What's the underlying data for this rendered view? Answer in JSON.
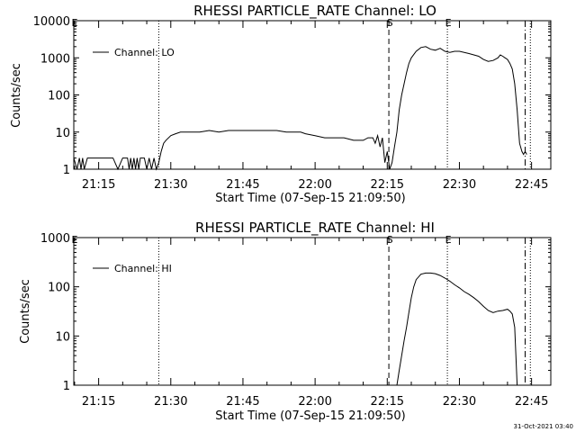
{
  "stamp": "31-Oct-2021 03:40",
  "chart_data": [
    {
      "type": "line",
      "title": "RHESSI PARTICLE_RATE Channel: LO",
      "ylabel": "Counts/sec",
      "xlabel": "Start Time (07-Sep-15 21:09:50)",
      "y_scale": "log",
      "ylim": [
        1,
        10000
      ],
      "xlim": [
        "21:09:50",
        "22:49:00"
      ],
      "x_ticks": [
        "21:15",
        "21:30",
        "21:45",
        "22:00",
        "22:15",
        "22:30",
        "22:45"
      ],
      "y_ticks": [
        "1",
        "10",
        "100",
        "1000",
        "10000"
      ],
      "legend": "Channel: LO",
      "legend_position": "top-left",
      "markers": [
        {
          "label": "E",
          "time": "21:09:50",
          "style": "solid"
        },
        {
          "label": "",
          "time": "21:27:30",
          "style": "dotted"
        },
        {
          "label": "S",
          "time": "22:15:20",
          "style": "dashed"
        },
        {
          "label": "E",
          "time": "22:27:30",
          "style": "dotted"
        },
        {
          "label": "",
          "time": "22:43:40",
          "style": "dashdot"
        },
        {
          "label": "",
          "time": "22:44:45",
          "style": "dotted"
        }
      ],
      "series": [
        {
          "name": "Channel: LO",
          "x": [
            "21:09:50",
            "21:10:30",
            "21:11:00",
            "21:11:20",
            "21:11:40",
            "21:12:00",
            "21:12:40",
            "21:13:20",
            "21:14:00",
            "21:15:00",
            "21:16:00",
            "21:17:00",
            "21:18:00",
            "21:19:00",
            "21:20:00",
            "21:21:00",
            "21:21:20",
            "21:21:40",
            "21:22:00",
            "21:22:20",
            "21:22:40",
            "21:23:00",
            "21:23:20",
            "21:23:40",
            "21:24:00",
            "21:24:30",
            "21:25:00",
            "21:25:30",
            "21:26:00",
            "21:26:30",
            "21:27:00",
            "21:27:30",
            "21:28:00",
            "21:28:30",
            "21:29:00",
            "21:30:00",
            "21:31:00",
            "21:32:00",
            "21:34:00",
            "21:36:00",
            "21:38:00",
            "21:40:00",
            "21:42:00",
            "21:44:00",
            "21:46:00",
            "21:48:00",
            "21:50:00",
            "21:52:00",
            "21:54:00",
            "21:56:00",
            "21:57:00",
            "21:58:00",
            "22:00:00",
            "22:02:00",
            "22:04:00",
            "22:06:00",
            "22:08:00",
            "22:10:00",
            "22:11:00",
            "22:12:00",
            "22:12:30",
            "22:13:00",
            "22:13:30",
            "22:14:00",
            "22:14:30",
            "22:15:00",
            "22:15:30",
            "22:16:00",
            "22:16:30",
            "22:17:00",
            "22:17:30",
            "22:18:00",
            "22:18:30",
            "22:19:00",
            "22:19:30",
            "22:20:00",
            "22:21:00",
            "22:22:00",
            "22:23:00",
            "22:24:00",
            "22:25:00",
            "22:26:00",
            "22:27:00",
            "22:28:00",
            "22:29:00",
            "22:30:00",
            "22:31:00",
            "22:32:00",
            "22:33:00",
            "22:34:00",
            "22:35:00",
            "22:36:00",
            "22:37:00",
            "22:38:00",
            "22:38:30",
            "22:39:00",
            "22:39:30",
            "22:40:00",
            "22:40:30",
            "22:41:00",
            "22:41:30",
            "22:42:00",
            "22:42:30",
            "22:43:00",
            "22:43:20",
            "22:43:40",
            "22:44:00"
          ],
          "values": [
            2,
            1,
            2,
            1,
            2,
            1,
            2,
            2,
            2,
            2,
            2,
            2,
            2,
            1,
            2,
            2,
            1,
            2,
            1,
            2,
            1,
            2,
            1,
            2,
            2,
            2,
            1,
            2,
            1,
            2,
            1,
            1.5,
            3,
            5,
            6,
            8,
            9,
            10,
            10,
            10,
            11,
            10,
            11,
            11,
            11,
            11,
            11,
            11,
            10,
            10,
            10,
            9,
            8,
            7,
            7,
            7,
            6,
            6,
            7,
            7,
            5,
            8,
            4,
            7,
            1.5,
            3,
            1,
            1.5,
            4,
            10,
            40,
            100,
            200,
            400,
            700,
            1000,
            1500,
            1900,
            2000,
            1700,
            1600,
            1800,
            1500,
            1400,
            1500,
            1500,
            1400,
            1300,
            1200,
            1100,
            900,
            800,
            850,
            1000,
            1200,
            1100,
            1000,
            900,
            700,
            500,
            200,
            40,
            5,
            3,
            2.5,
            3,
            2.5
          ]
        }
      ]
    },
    {
      "type": "line",
      "title": "RHESSI PARTICLE_RATE Channel: HI",
      "ylabel": "Counts/sec",
      "xlabel": "Start Time (07-Sep-15 21:09:50)",
      "y_scale": "log",
      "ylim": [
        1,
        1000
      ],
      "xlim": [
        "21:09:50",
        "22:49:00"
      ],
      "x_ticks": [
        "21:15",
        "21:30",
        "21:45",
        "22:00",
        "22:15",
        "22:30",
        "22:45"
      ],
      "y_ticks": [
        "1",
        "10",
        "100",
        "1000"
      ],
      "legend": "Channel: HI",
      "legend_position": "top-left",
      "markers": [
        {
          "label": "E",
          "time": "21:09:50",
          "style": "solid"
        },
        {
          "label": "",
          "time": "21:27:30",
          "style": "dotted"
        },
        {
          "label": "S",
          "time": "22:15:20",
          "style": "dashed"
        },
        {
          "label": "E",
          "time": "22:27:30",
          "style": "dotted"
        },
        {
          "label": "",
          "time": "22:43:40",
          "style": "dashdot"
        },
        {
          "label": "",
          "time": "22:44:45",
          "style": "dotted"
        }
      ],
      "series": [
        {
          "name": "Channel: HI",
          "x": [
            "22:17:00",
            "22:17:30",
            "22:18:00",
            "22:18:30",
            "22:19:00",
            "22:19:30",
            "22:20:00",
            "22:20:30",
            "22:21:00",
            "22:22:00",
            "22:23:00",
            "22:24:00",
            "22:25:00",
            "22:26:00",
            "22:27:00",
            "22:28:00",
            "22:29:00",
            "22:30:00",
            "22:31:00",
            "22:32:00",
            "22:33:00",
            "22:34:00",
            "22:35:00",
            "22:36:00",
            "22:37:00",
            "22:38:00",
            "22:39:00",
            "22:40:00",
            "22:40:30",
            "22:41:00",
            "22:41:30",
            "22:42:00"
          ],
          "values": [
            1,
            2,
            4,
            8,
            15,
            30,
            60,
            100,
            140,
            180,
            190,
            190,
            185,
            170,
            150,
            130,
            110,
            95,
            80,
            70,
            60,
            50,
            40,
            33,
            30,
            32,
            33,
            35,
            32,
            28,
            15,
            1
          ]
        }
      ]
    }
  ]
}
